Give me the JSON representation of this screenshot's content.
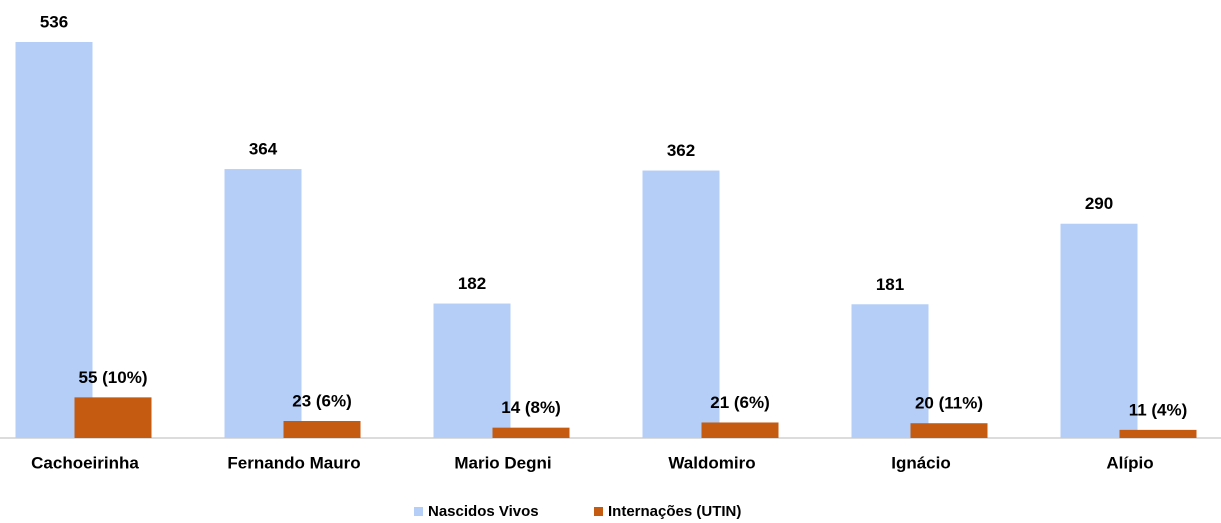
{
  "chart_data": {
    "type": "bar",
    "categories": [
      "Cachoeirinha",
      "Fernando Mauro",
      "Mario Degni",
      "Waldomiro",
      "Ignácio",
      "Alípio"
    ],
    "series": [
      {
        "name": "Nascidos Vivos",
        "color": "#b4cef7",
        "values": [
          536,
          364,
          182,
          362,
          181,
          290
        ]
      },
      {
        "name": "Internações (UTIN)",
        "color": "#c55a11",
        "values": [
          55,
          23,
          14,
          21,
          20,
          11
        ],
        "value_labels": [
          "55 (10%)",
          "23 (6%)",
          "14 (8%)",
          "21 (6%)",
          "20 (11%)",
          "11 (4%)"
        ]
      }
    ],
    "legend": "bottom"
  }
}
